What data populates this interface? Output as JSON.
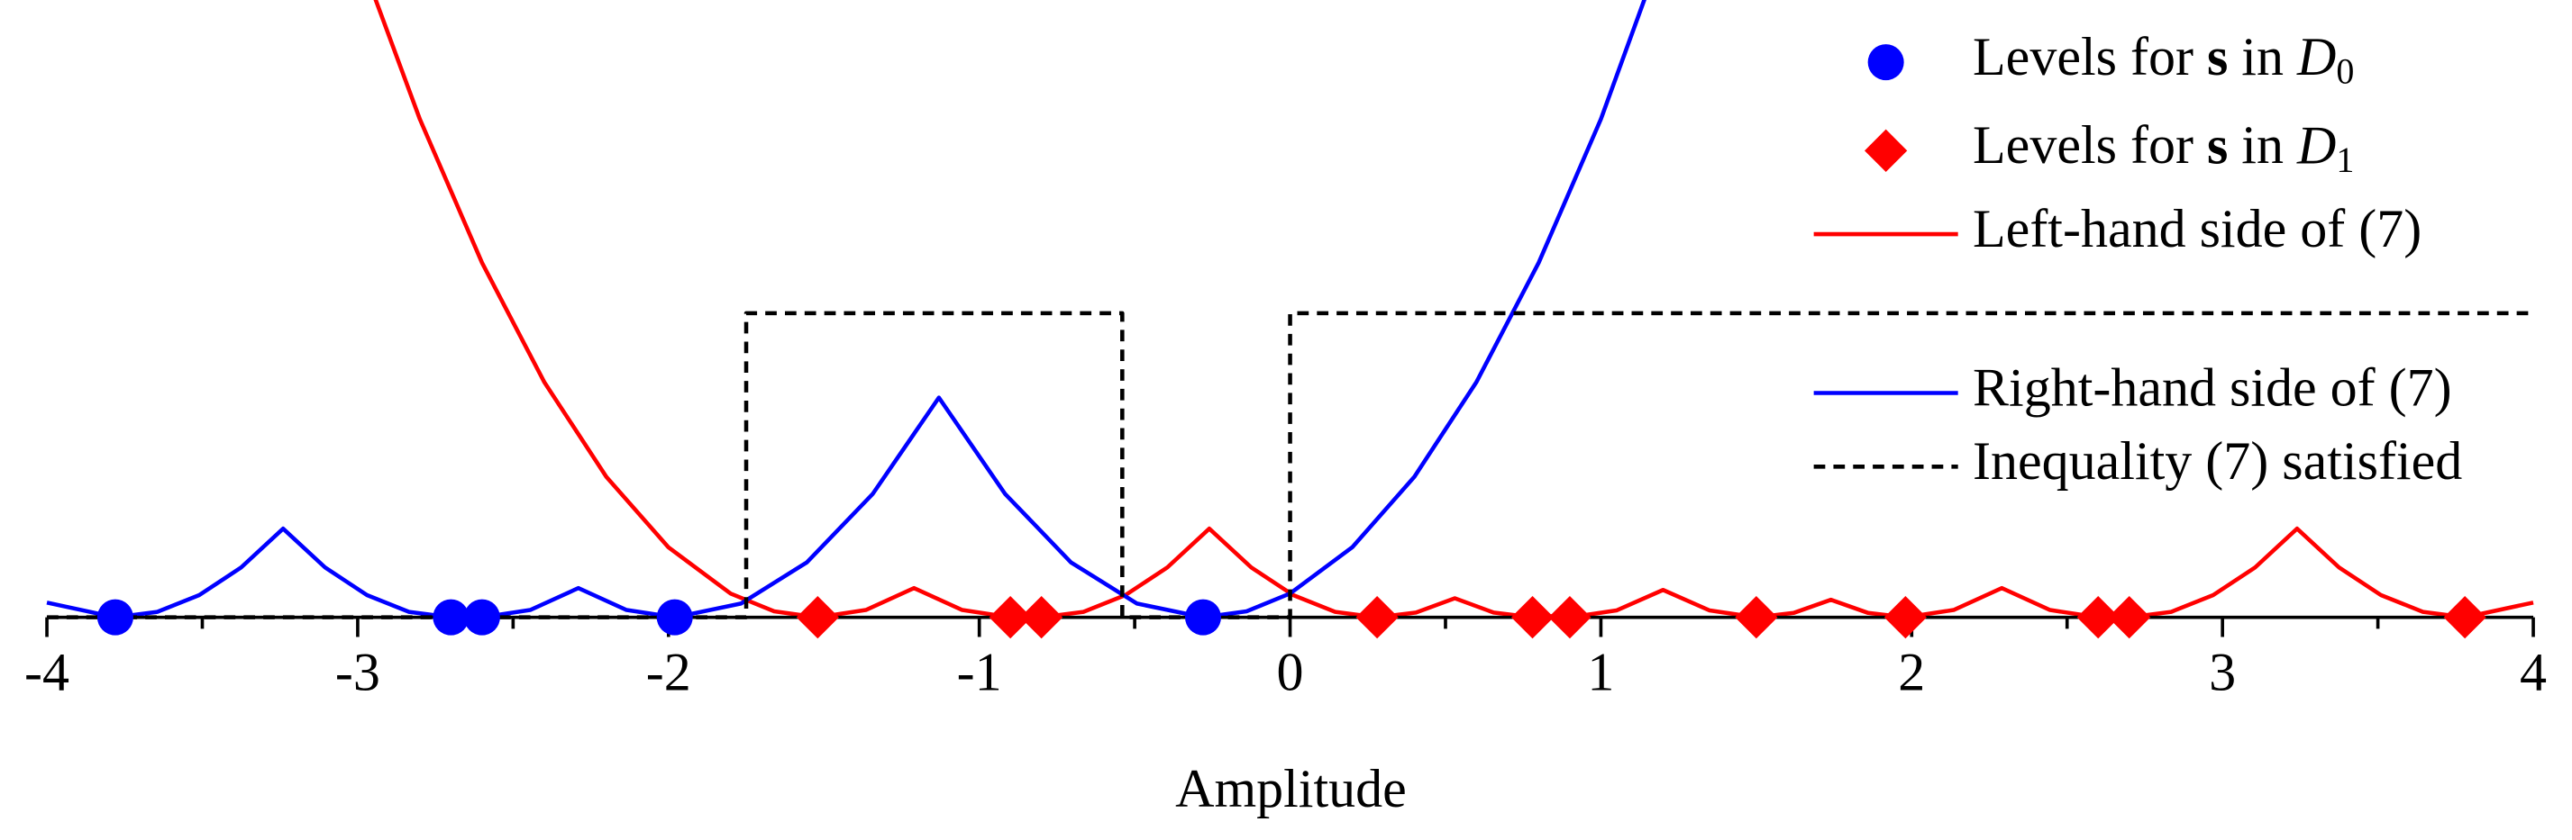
{
  "chart_data": {
    "type": "line",
    "xlabel": "Amplitude",
    "xlim": [
      -4,
      4
    ],
    "ylim": [
      0,
      2.03
    ],
    "xticks": [
      -4,
      -3,
      -2,
      -1,
      0,
      1,
      2,
      3,
      4
    ],
    "xminorticks": [
      -3.5,
      -2.5,
      -1.5,
      -0.5,
      0.5,
      1.5,
      2.5,
      3.5
    ],
    "legend": "upper right",
    "points": [
      {
        "name": "Levels for s in D0",
        "color": "#0000ff",
        "marker": "circle",
        "x": [
          -3.78,
          -2.7,
          -2.6,
          -1.98,
          -0.28
        ],
        "values": [
          0,
          0,
          0,
          0,
          0
        ]
      },
      {
        "name": "Levels for s in D1",
        "color": "#ff0000",
        "marker": "diamond",
        "x": [
          -1.52,
          -0.9,
          -0.8,
          0.28,
          0.78,
          0.9,
          1.5,
          1.98,
          2.6,
          2.7,
          3.78
        ],
        "values": [
          0,
          0,
          0,
          0,
          0,
          0,
          0,
          0,
          0,
          0,
          0
        ]
      }
    ],
    "series": [
      {
        "name": "Left-hand side of (7)",
        "color": "#ff0000",
        "style": "solid",
        "x": [
          -3.0,
          -2.8,
          -2.6,
          -2.4,
          -2.2,
          -2.0,
          -1.8,
          -1.66,
          -1.52,
          -1.365,
          -1.21,
          -1.055,
          -0.9,
          -0.85,
          -0.8,
          -0.665,
          -0.53,
          -0.395,
          -0.26,
          -0.125,
          0.01,
          0.145,
          0.28,
          0.405,
          0.53,
          0.655,
          0.78,
          0.84,
          0.9,
          1.05,
          1.2,
          1.35,
          1.5,
          1.62,
          1.74,
          1.86,
          1.98,
          2.135,
          2.29,
          2.445,
          2.6,
          2.65,
          2.7,
          2.835,
          2.97,
          3.105,
          3.24,
          3.375,
          3.51,
          3.645,
          3.78,
          4.0
        ],
        "values": [
          2.19,
          1.638,
          1.166,
          0.774,
          0.462,
          0.23,
          0.078,
          0.0196,
          0,
          0.024,
          0.0961,
          0.024,
          0,
          0.0025,
          0,
          0.018,
          0.0729,
          0.164,
          0.2916,
          0.164,
          0.0729,
          0.018,
          0,
          0.0156,
          0.0625,
          0.0156,
          0,
          0.0036,
          0,
          0.0225,
          0.09,
          0.0225,
          0,
          0.0144,
          0.0576,
          0.0144,
          0,
          0.024,
          0.0961,
          0.024,
          0,
          0.0025,
          0,
          0.018,
          0.0729,
          0.164,
          0.2916,
          0.164,
          0.0729,
          0.018,
          0,
          0.0484
        ]
      },
      {
        "name": "Right-hand side of (7)",
        "color": "#0000ff",
        "style": "solid",
        "x": [
          -4.0,
          -3.78,
          -3.645,
          -3.51,
          -3.375,
          -3.24,
          -3.105,
          -2.97,
          -2.835,
          -2.7,
          -2.65,
          -2.6,
          -2.445,
          -2.29,
          -2.135,
          -1.98,
          -1.767,
          -1.555,
          -1.3425,
          -1.13,
          -0.9175,
          -0.705,
          -0.4925,
          -0.28,
          -0.14,
          0.0,
          0.2,
          0.4,
          0.6,
          0.8,
          1.0,
          1.2
        ],
        "values": [
          0.0484,
          0,
          0.018,
          0.0729,
          0.164,
          0.2916,
          0.164,
          0.0729,
          0.018,
          0,
          0.0025,
          0,
          0.024,
          0.0961,
          0.024,
          0,
          0.0452,
          0.1806,
          0.4064,
          0.7225,
          0.4064,
          0.1806,
          0.0452,
          0,
          0.0196,
          0.0784,
          0.2304,
          0.4624,
          0.7744,
          1.1664,
          1.6384,
          2.2
        ]
      },
      {
        "name": "Inequality (7) satisfied",
        "color": "#000000",
        "style": "dashed",
        "x": [
          -4,
          -1.75,
          -1.75,
          -0.54,
          -0.54,
          0,
          0,
          4
        ],
        "values": [
          0,
          0,
          1,
          1,
          0,
          0,
          1,
          1
        ]
      }
    ]
  }
}
